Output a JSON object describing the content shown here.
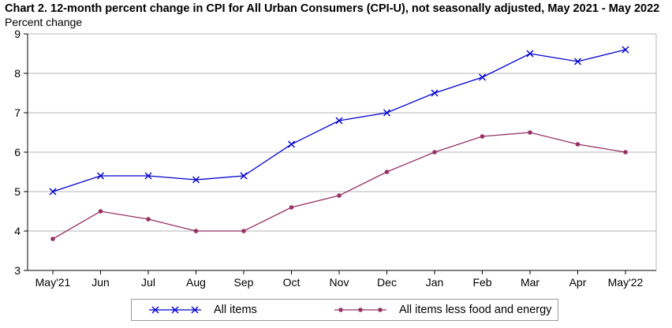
{
  "chart_data": {
    "type": "line",
    "title": "Chart 2. 12-month percent change in CPI for All Urban Consumers (CPI-U), not seasonally adjusted, May 2021 - May 2022",
    "ylabel": "Percent change",
    "xlabel": "",
    "categories": [
      "May'21",
      "Jun",
      "Jul",
      "Aug",
      "Sep",
      "Oct",
      "Nov",
      "Dec",
      "Jan",
      "Feb",
      "Mar",
      "Apr",
      "May'22"
    ],
    "ylim": [
      3,
      9
    ],
    "yticks": [
      3,
      4,
      5,
      6,
      7,
      8,
      9
    ],
    "grid": true,
    "legend_position": "bottom",
    "series": [
      {
        "name": "All items",
        "color": "#0000cc",
        "marker": "x",
        "values": [
          5.0,
          5.4,
          5.4,
          5.3,
          5.4,
          6.2,
          6.8,
          7.0,
          7.5,
          7.9,
          8.5,
          8.3,
          8.6
        ]
      },
      {
        "name": "All items less food and energy",
        "color": "#943364",
        "marker": "circle",
        "values": [
          3.8,
          4.5,
          4.3,
          4.0,
          4.0,
          4.6,
          4.9,
          5.5,
          6.0,
          6.4,
          6.5,
          6.2,
          6.0
        ]
      }
    ]
  }
}
